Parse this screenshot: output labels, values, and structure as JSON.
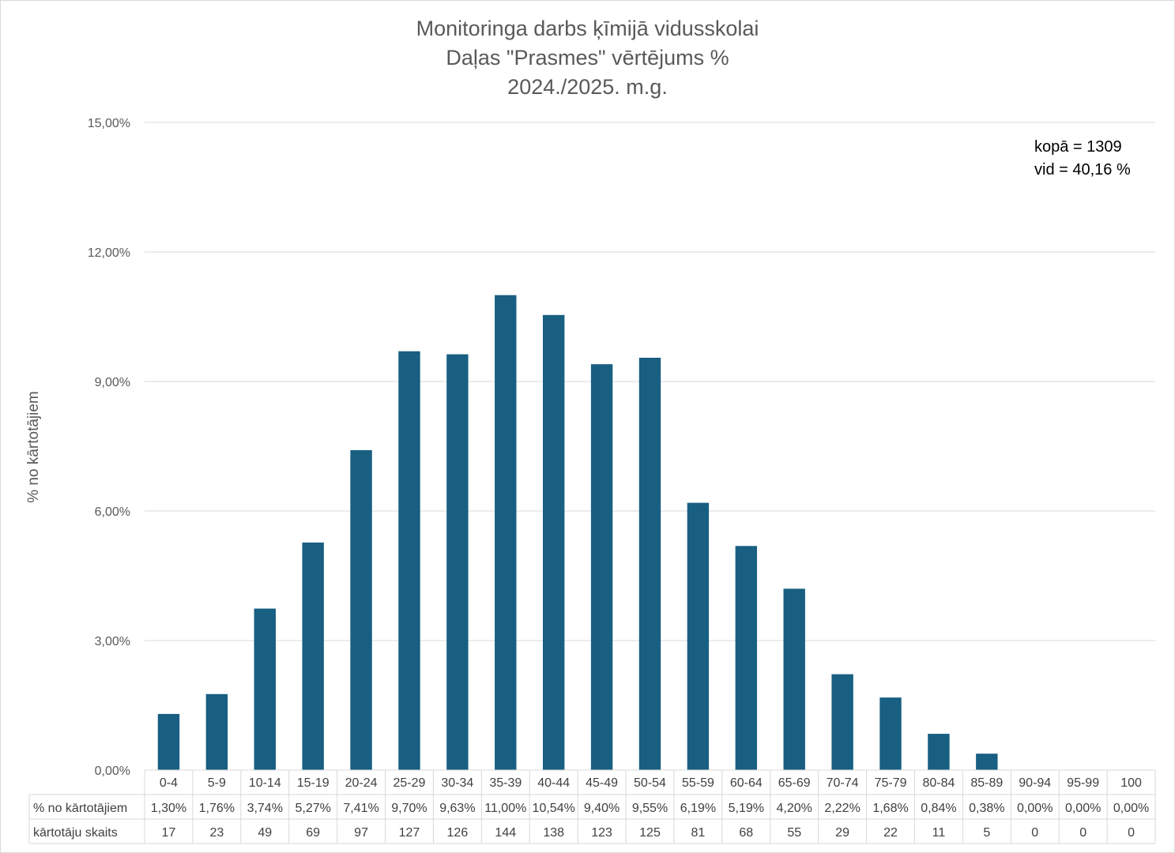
{
  "chart_data": {
    "type": "bar",
    "title": [
      "Monitoringa darbs ķīmijā vidusskolai",
      "Daļas \"Prasmes\" vērtējums %",
      "2024./2025. m.g."
    ],
    "ylabel": "% no kārtotājiem",
    "ylim": [
      0,
      15
    ],
    "yticks": [
      0,
      3,
      6,
      9,
      12,
      15
    ],
    "ytick_labels": [
      "0,00%",
      "3,00%",
      "6,00%",
      "9,00%",
      "12,00%",
      "15,00%"
    ],
    "grid": true,
    "color": "#185f82",
    "categories": [
      "0-4",
      "5-9",
      "10-14",
      "15-19",
      "20-24",
      "25-29",
      "30-34",
      "35-39",
      "40-44",
      "45-49",
      "50-54",
      "55-59",
      "60-64",
      "65-69",
      "70-74",
      "75-79",
      "80-84",
      "85-89",
      "90-94",
      "95-99",
      "100"
    ],
    "values": [
      1.3,
      1.76,
      3.74,
      5.27,
      7.41,
      9.7,
      9.63,
      11.0,
      10.54,
      9.4,
      9.55,
      6.19,
      5.19,
      4.2,
      2.22,
      1.68,
      0.84,
      0.38,
      0.0,
      0.0,
      0.0
    ],
    "annotations": [
      "kopā = 1309",
      "vid = 40,16 %"
    ],
    "table": {
      "rows": [
        {
          "label": "% no kārtotājiem",
          "cells": [
            "1,30%",
            "1,76%",
            "3,74%",
            "5,27%",
            "7,41%",
            "9,70%",
            "9,63%",
            "11,00%",
            "10,54%",
            "9,40%",
            "9,55%",
            "6,19%",
            "5,19%",
            "4,20%",
            "2,22%",
            "1,68%",
            "0,84%",
            "0,38%",
            "0,00%",
            "0,00%",
            "0,00%"
          ]
        },
        {
          "label": "kārtotāju skaits",
          "cells": [
            "17",
            "23",
            "49",
            "69",
            "97",
            "127",
            "126",
            "144",
            "138",
            "123",
            "125",
            "81",
            "68",
            "55",
            "29",
            "22",
            "11",
            "5",
            "0",
            "0",
            "0"
          ]
        }
      ]
    }
  }
}
